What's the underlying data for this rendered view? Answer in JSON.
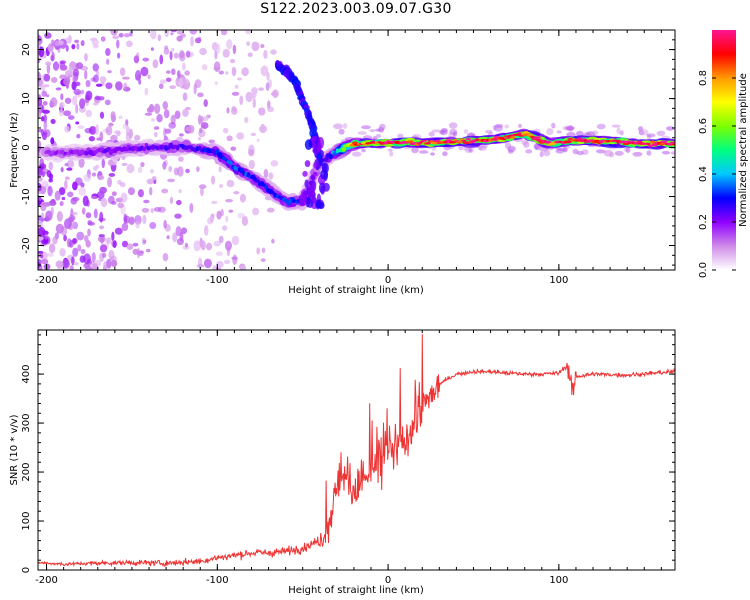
{
  "figure": {
    "title": "S122.2023.003.09.07.G30"
  },
  "chart_data": [
    {
      "type": "heatmap",
      "panel": "spectrogram",
      "xlabel": "Height of straight line (km)",
      "ylabel": "Frequency (Hz)",
      "xlim": [
        -205,
        168
      ],
      "ylim": [
        -25,
        24
      ],
      "x_ticks": [
        -200,
        -100,
        0,
        100
      ],
      "y_ticks": [
        -20,
        -10,
        0,
        10,
        20
      ],
      "colorbar": {
        "label": "Normalized spectral amplitude",
        "ticks": [
          0.0,
          0.2,
          0.4,
          0.6,
          0.8
        ],
        "range": [
          0,
          1
        ],
        "colors": [
          "#ffffff",
          "#d08ae8",
          "#8f00ff",
          "#0000ff",
          "#00c8ff",
          "#00ff7f",
          "#7fff00",
          "#ffff00",
          "#ff9900",
          "#ff0000",
          "#ff1493"
        ]
      },
      "ridge": {
        "description_points": [
          {
            "x": -180,
            "y": -1.0,
            "amp": 0.18
          },
          {
            "x": -160,
            "y": -0.5,
            "amp": 0.22
          },
          {
            "x": -140,
            "y": 0.0,
            "amp": 0.22
          },
          {
            "x": -120,
            "y": 0.2,
            "amp": 0.25
          },
          {
            "x": -100,
            "y": -1.0,
            "amp": 0.3
          },
          {
            "x": -90,
            "y": -4.0,
            "amp": 0.35
          },
          {
            "x": -80,
            "y": -6.0,
            "amp": 0.3
          },
          {
            "x": -70,
            "y": -8.5,
            "amp": 0.28
          },
          {
            "x": -60,
            "y": -11.0,
            "amp": 0.3
          },
          {
            "x": -50,
            "y": -11.0,
            "amp": 0.3
          },
          {
            "x": -40,
            "y": -3.0,
            "amp": 0.18
          },
          {
            "x": -30,
            "y": -1.0,
            "amp": 0.4
          },
          {
            "x": -20,
            "y": 0.8,
            "amp": 0.85
          },
          {
            "x": 0,
            "y": 1.0,
            "amp": 0.95
          },
          {
            "x": 20,
            "y": 1.0,
            "amp": 0.95
          },
          {
            "x": 40,
            "y": 1.2,
            "amp": 0.95
          },
          {
            "x": 60,
            "y": 1.5,
            "amp": 0.95
          },
          {
            "x": 80,
            "y": 2.8,
            "amp": 0.9
          },
          {
            "x": 95,
            "y": 0.8,
            "amp": 0.9
          },
          {
            "x": 110,
            "y": 1.5,
            "amp": 0.95
          },
          {
            "x": 130,
            "y": 1.3,
            "amp": 0.95
          },
          {
            "x": 150,
            "y": 0.8,
            "amp": 0.95
          },
          {
            "x": 168,
            "y": 0.8,
            "amp": 0.95
          }
        ],
        "secondary_branch": [
          {
            "x": -65,
            "y": 17.0
          },
          {
            "x": -55,
            "y": 14.0
          },
          {
            "x": -45,
            "y": 5.0
          },
          {
            "x": -40,
            "y": -2.0
          }
        ]
      }
    },
    {
      "type": "line",
      "panel": "snr",
      "xlabel": "Height of straight line (km)",
      "ylabel": "SNR (10 * v/v)",
      "xlim": [
        -205,
        168
      ],
      "ylim": [
        0,
        490
      ],
      "x_ticks": [
        -200,
        -100,
        0,
        100
      ],
      "y_ticks": [
        0,
        100,
        200,
        300,
        400
      ],
      "color": "#ee3333",
      "series": [
        {
          "x": [
            -205,
            -190,
            -170,
            -150,
            -130,
            -110,
            -100,
            -90,
            -80,
            -70,
            -60,
            -50,
            -40,
            -35,
            -30,
            -25,
            -20,
            -15,
            -10,
            -5,
            0,
            5,
            10,
            15,
            20,
            25,
            30,
            40,
            50,
            60,
            70,
            80,
            90,
            100,
            105,
            108,
            110,
            120,
            140,
            168
          ],
          "y": [
            15,
            12,
            14,
            15,
            14,
            18,
            25,
            30,
            35,
            35,
            38,
            45,
            60,
            90,
            170,
            190,
            170,
            180,
            200,
            220,
            230,
            250,
            260,
            300,
            330,
            355,
            380,
            400,
            405,
            405,
            402,
            400,
            400,
            402,
            420,
            360,
            395,
            400,
            398,
            405
          ]
        }
      ]
    }
  ]
}
